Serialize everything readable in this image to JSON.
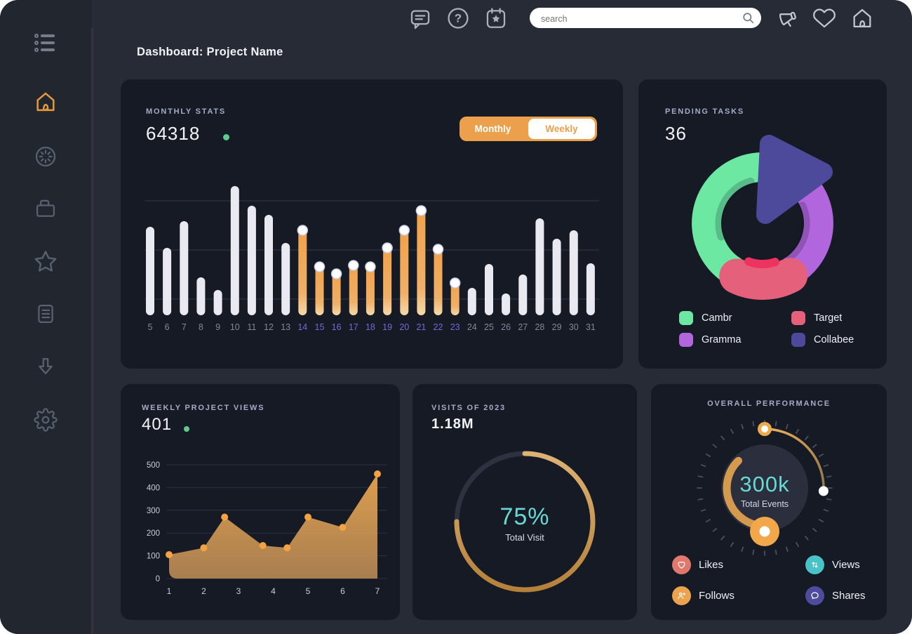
{
  "header": {
    "title": "Dashboard: Project Name"
  },
  "search": {
    "placeholder": "search"
  },
  "topbar_icons": {
    "left": [
      "chat",
      "help",
      "calendar"
    ],
    "right": [
      "megaphone",
      "heart",
      "home"
    ]
  },
  "sidebar_icons": [
    "menu",
    "home",
    "spinner",
    "briefcase",
    "star",
    "document",
    "arrow-down",
    "gear"
  ],
  "sidebar_active": "home",
  "colors": {
    "page_bg": "#262b36",
    "card_bg": "#151a24",
    "accent_orange": "#eda04c",
    "green_dot": "#5fc98e",
    "teal": "#68d8d2",
    "bar_white": "#e9eaf1",
    "highlight_label": "#7468d8"
  },
  "cards": {
    "monthly_stats": {
      "value": "64318",
      "toggle": {
        "options": [
          "Monthly",
          "Weekly"
        ],
        "selected": "Weekly"
      }
    },
    "pending_tasks": {
      "value": "36",
      "legend": [
        {
          "label": "Cambr",
          "color": "#6ce8a3"
        },
        {
          "label": "Target",
          "color": "#e5607a"
        },
        {
          "label": "Gramma",
          "color": "#b266dd"
        },
        {
          "label": "Collabee",
          "color": "#4d4a9c"
        }
      ]
    },
    "weekly_views": {
      "value": "401"
    },
    "visits": {
      "value": "1.18M"
    },
    "performance": {
      "legend": [
        {
          "label": "Likes",
          "color": "#e0786d",
          "icon": "heart-icon"
        },
        {
          "label": "Views",
          "color": "#49c3c7",
          "icon": "arrows-updown-icon"
        },
        {
          "label": "Follows",
          "color": "#eca34d",
          "icon": "person-plus-icon"
        },
        {
          "label": "Shares",
          "color": "#504b9d",
          "icon": "chat-bubble-icon"
        }
      ]
    }
  },
  "chart_data": [
    {
      "type": "bar",
      "title": "MONTHLY STATS",
      "categories": [
        5,
        6,
        7,
        8,
        9,
        10,
        11,
        12,
        13,
        14,
        15,
        16,
        17,
        18,
        19,
        20,
        21,
        22,
        23,
        24,
        25,
        26,
        27,
        28,
        29,
        30,
        31
      ],
      "values": [
        126,
        96,
        134,
        54,
        36,
        184,
        156,
        143,
        103,
        126,
        74,
        64,
        76,
        74,
        101,
        126,
        154,
        99,
        51,
        39,
        73,
        31,
        58,
        138,
        109,
        121,
        74
      ],
      "highlight_days": [
        14,
        15,
        16,
        17,
        18,
        19,
        20,
        21,
        22,
        23
      ],
      "note": "no y-axis shown; values are relative heights",
      "bar_color": "#e9eaf1",
      "highlight_color": "#f0a14a",
      "grid": true
    },
    {
      "type": "pie",
      "title": "PENDING TASKS",
      "total": 36,
      "segments": [
        {
          "label": "Cambr",
          "color": "#6ce8a3",
          "percent": 41
        },
        {
          "label": "Gramma",
          "color": "#b266dd",
          "percent": 29
        },
        {
          "label": "Target",
          "color": "#e5607a",
          "percent": 16
        },
        {
          "label": "Collabee",
          "color": "#4d4a9c",
          "percent": 14
        }
      ],
      "legend_position": "bottom"
    },
    {
      "type": "area",
      "title": "WEEKLY PROJECT VIEWS",
      "x": [
        1,
        2,
        2.6,
        3.7,
        4.4,
        5,
        6,
        7
      ],
      "y": [
        105,
        135,
        270,
        145,
        135,
        270,
        225,
        460
      ],
      "xticks": [
        1,
        2,
        3,
        4,
        5,
        6,
        7
      ],
      "yticks": [
        0,
        100,
        200,
        300,
        400,
        500
      ],
      "ylim": [
        0,
        500
      ],
      "point_color": "#f3a343",
      "fill": "orange-gradient",
      "grid": true
    },
    {
      "type": "progress_ring",
      "title": "VISITS OF 2023",
      "value": "1.18M",
      "percent": 75,
      "center_label": "75%",
      "center_sub": "Total Visit",
      "ring_color": "#c9964a"
    },
    {
      "type": "gauge",
      "title": "OVERALL PERFORMANCE",
      "center_label": "300k",
      "center_sub": "Total Events",
      "legend": [
        "Likes",
        "Views",
        "Follows",
        "Shares"
      ]
    }
  ]
}
